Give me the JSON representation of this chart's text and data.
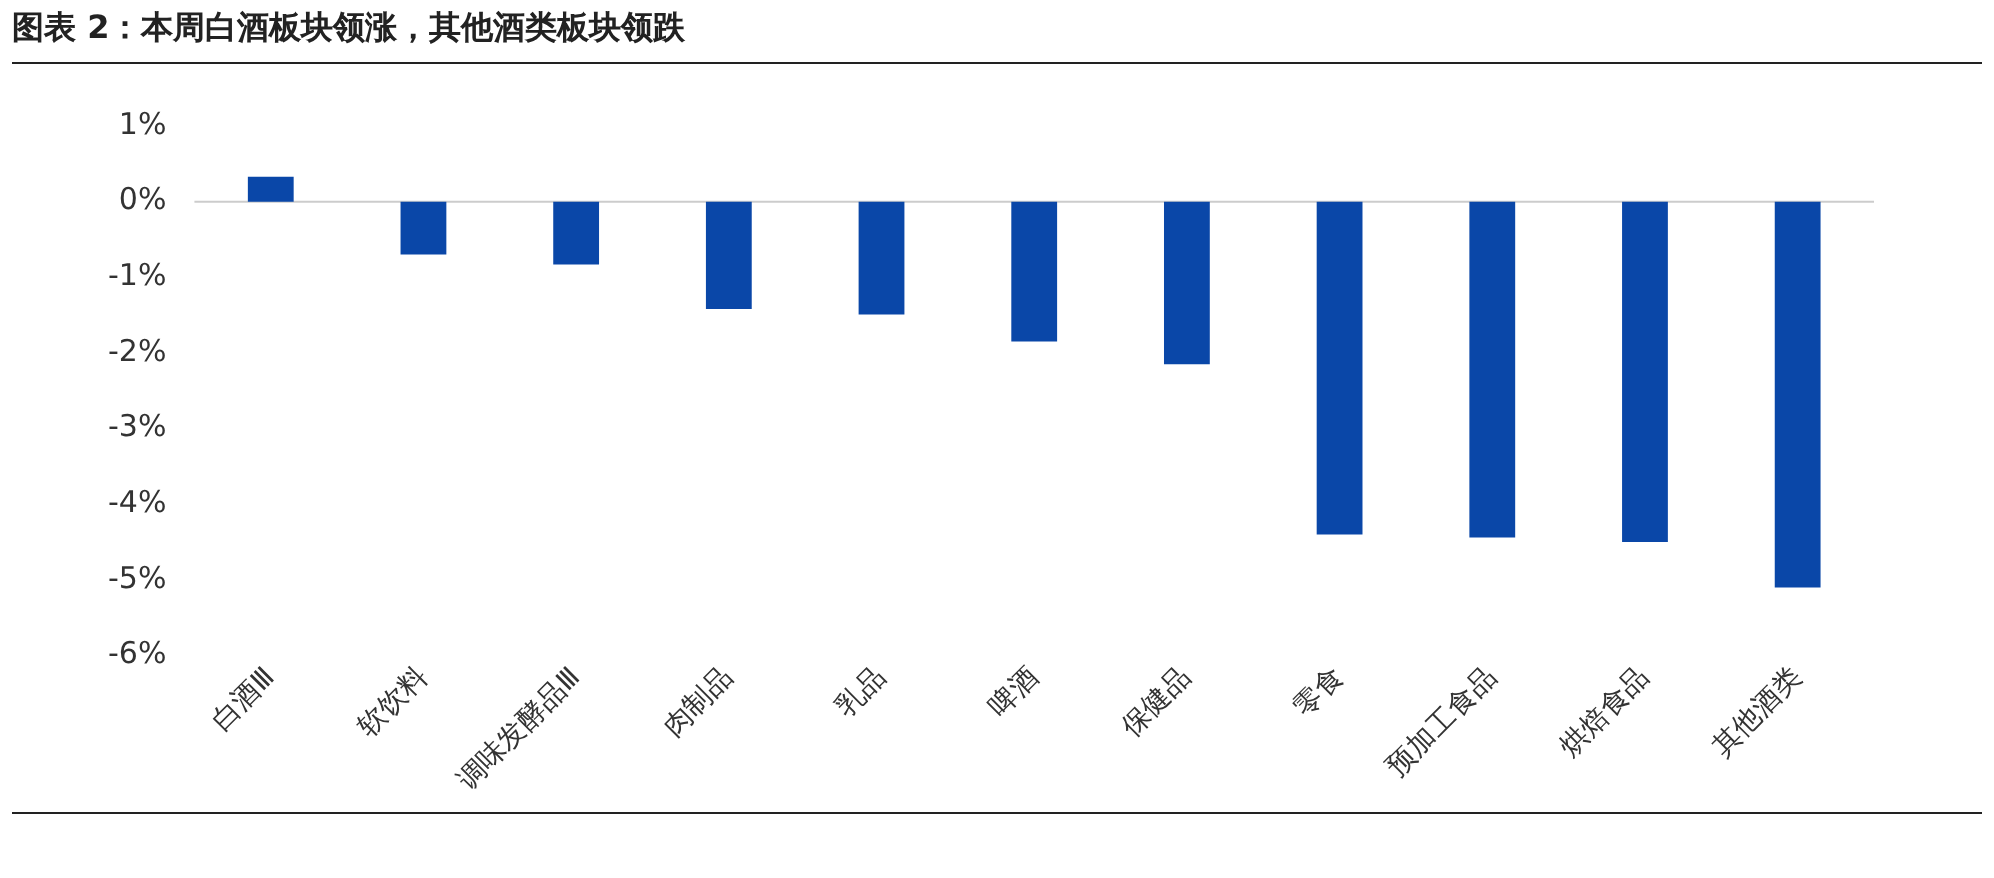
{
  "chart_data": {
    "type": "bar",
    "title": "图表 2：本周白酒板块领涨，其他酒类板块领跌",
    "categories": [
      "白酒Ⅲ",
      "软饮料",
      "调味发酵品Ⅲ",
      "肉制品",
      "乳品",
      "啤酒",
      "保健品",
      "零食",
      "预加工食品",
      "烘焙食品",
      "其他酒类"
    ],
    "values": [
      0.33,
      -0.7,
      -0.83,
      -1.42,
      -1.49,
      -1.85,
      -2.15,
      -4.4,
      -4.44,
      -4.5,
      -5.1
    ],
    "color": "#0a47a8",
    "ylim": [
      -6,
      1
    ],
    "yticks": [
      {
        "value": -6,
        "label": "-6%"
      },
      {
        "value": -5,
        "label": "-5%"
      },
      {
        "value": -4,
        "label": "-4%"
      },
      {
        "value": -3,
        "label": "-3%"
      },
      {
        "value": -2,
        "label": "-2%"
      },
      {
        "value": -1,
        "label": "-1%"
      },
      {
        "value": 0,
        "label": "0%"
      },
      {
        "value": 1,
        "label": "1%"
      }
    ],
    "ref_lines": [
      {
        "axis": "y",
        "value": 0,
        "color": "#cccccc"
      }
    ],
    "grid": false,
    "legend": false
  }
}
